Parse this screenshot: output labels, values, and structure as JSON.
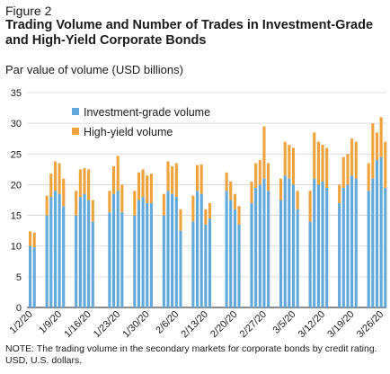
{
  "figure_label": "Figure 2",
  "chart_data": {
    "type": "bar",
    "stacked": true,
    "title": "Trading Volume and Number of Trades in Investment-Grade and High-Yield Corporate Bonds",
    "ylabel": "Par value of volume (USD billions)",
    "xlabel": "",
    "ylim": [
      0,
      35
    ],
    "yticks": [
      0,
      5,
      10,
      15,
      20,
      25,
      30,
      35
    ],
    "grid": true,
    "legend": "top-left",
    "x_tick_labels": [
      "1/2/20",
      "1/9/20",
      "1/16/20",
      "1/23/20",
      "1/30/20",
      "2/6/20",
      "2/13/20",
      "2/20/20",
      "2/27/20",
      "3/5/20",
      "3/12/20",
      "3/19/20",
      "3/26/20"
    ],
    "colors": {
      "investment_grade": "#62a8da",
      "high_yield": "#f0a23c"
    },
    "categories": [
      "1/2/20",
      "1/3/20",
      "1/6/20",
      "1/7/20",
      "1/8/20",
      "1/9/20",
      "1/10/20",
      "1/13/20",
      "1/14/20",
      "1/15/20",
      "1/16/20",
      "1/17/20",
      "1/21/20",
      "1/22/20",
      "1/23/20",
      "1/24/20",
      "1/27/20",
      "1/28/20",
      "1/29/20",
      "1/30/20",
      "1/31/20",
      "2/3/20",
      "2/4/20",
      "2/5/20",
      "2/6/20",
      "2/7/20",
      "2/10/20",
      "2/11/20",
      "2/12/20",
      "2/13/20",
      "2/14/20",
      "2/18/20",
      "2/19/20",
      "2/20/20",
      "2/21/20",
      "2/24/20",
      "2/25/20",
      "2/26/20",
      "2/27/20",
      "2/28/20",
      "3/2/20",
      "3/3/20",
      "3/4/20",
      "3/5/20",
      "3/6/20",
      "3/9/20",
      "3/10/20",
      "3/11/20",
      "3/12/20",
      "3/13/20",
      "3/16/20",
      "3/17/20",
      "3/18/20",
      "3/19/20",
      "3/20/20",
      "3/23/20",
      "3/24/20",
      "3/25/20",
      "3/26/20",
      "3/27/20",
      "3/30/20",
      "3/31/20"
    ],
    "series": [
      {
        "name": "Investment-grade volume",
        "values": [
          10.0,
          9.8,
          15.0,
          18.0,
          19.0,
          18.5,
          16.5,
          15.0,
          18.0,
          18.5,
          17.5,
          14.0,
          15.5,
          18.5,
          19.0,
          15.5,
          15.0,
          17.5,
          18.0,
          17.0,
          17.0,
          15.0,
          19.0,
          18.5,
          18.0,
          12.5,
          14.0,
          19.0,
          18.5,
          13.5,
          14.5,
          19.0,
          17.5,
          16.0,
          13.5,
          17.0,
          19.5,
          20.0,
          21.0,
          19.0,
          17.5,
          21.5,
          21.0,
          20.0,
          16.0,
          14.0,
          21.0,
          20.0,
          20.5,
          19.5,
          17.0,
          19.5,
          20.0,
          21.5,
          21.0,
          19.0,
          21.0,
          24.0,
          24.5,
          19.5,
          22.5,
          28.0
        ]
      },
      {
        "name": "High-yield volume",
        "values": [
          2.4,
          2.4,
          3.2,
          3.8,
          4.8,
          5.0,
          4.5,
          4.0,
          4.5,
          4.2,
          5.0,
          3.5,
          3.5,
          4.5,
          5.7,
          4.5,
          4.0,
          4.5,
          4.5,
          4.5,
          4.8,
          3.5,
          4.8,
          4.5,
          5.5,
          3.5,
          4.2,
          4.2,
          4.8,
          2.5,
          2.5,
          3.0,
          3.0,
          2.5,
          3.0,
          3.5,
          4.0,
          4.0,
          8.5,
          4.5,
          3.5,
          5.5,
          5.5,
          6.0,
          3.0,
          5.0,
          7.5,
          7.0,
          6.0,
          6.5,
          3.0,
          5.0,
          5.0,
          6.0,
          6.0,
          4.5,
          9.0,
          4.5,
          6.5,
          7.5,
          4.0,
          5.5
        ]
      }
    ]
  },
  "note": "NOTE: The trading volume in the secondary markets for corporate bonds by credit rating. USD, U.S. dollars."
}
